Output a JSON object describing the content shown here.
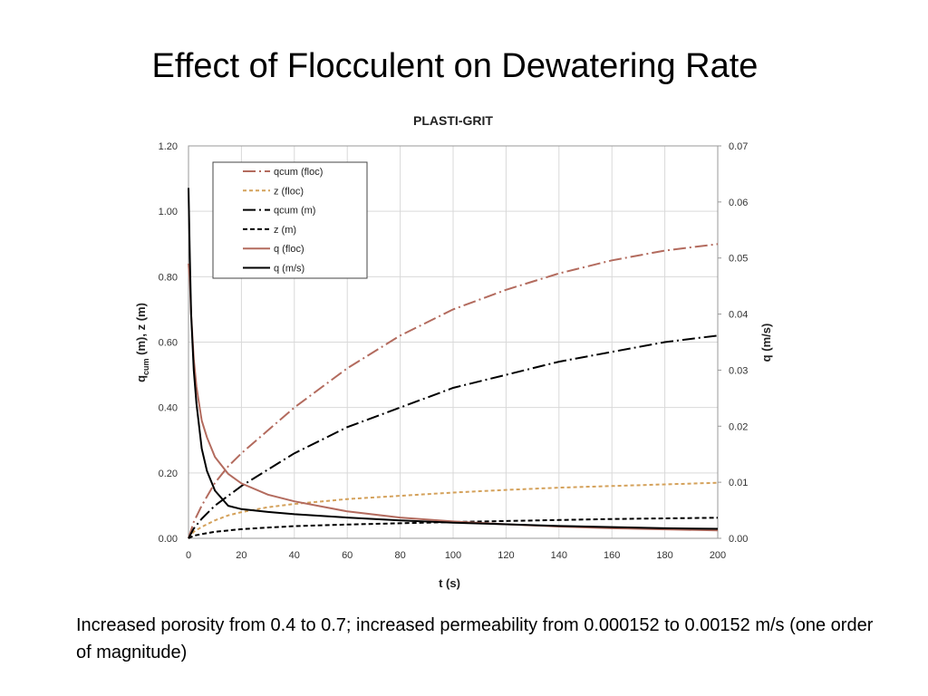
{
  "slide": {
    "title": "Effect of Flocculent on Dewatering Rate",
    "caption": "Increased porosity from 0.4 to 0.7; increased permeability from 0.000152 to 0.00152 m/s (one order of magnitude)"
  },
  "chart_data": {
    "type": "line",
    "title": "PLASTI-GRIT",
    "xlabel": "t (s)",
    "ylabel_left_main": "q",
    "ylabel_left_sub": "cum",
    "ylabel_left_rest": " (m), z (m)",
    "ylabel_right": "q (m/s)",
    "xlim": [
      0,
      200
    ],
    "ylim_left": [
      0,
      1.2
    ],
    "ylim_right": [
      0,
      0.07
    ],
    "x_ticks": [
      "0",
      "20",
      "40",
      "60",
      "80",
      "100",
      "120",
      "140",
      "160",
      "180",
      "200"
    ],
    "y_left_ticks": [
      "0.00",
      "0.20",
      "0.40",
      "0.60",
      "0.80",
      "1.00",
      "1.20"
    ],
    "y_right_ticks": [
      "0.00",
      "0.01",
      "0.02",
      "0.03",
      "0.04",
      "0.05",
      "0.06",
      "0.07"
    ],
    "grid": true,
    "legend_position": "top-left",
    "series": [
      {
        "name": "qcum (floc)",
        "axis": "left",
        "color": "#b36b5e",
        "dash": "14,4,2,4",
        "x": [
          0,
          2,
          5,
          10,
          15,
          20,
          30,
          40,
          50,
          60,
          80,
          100,
          120,
          140,
          160,
          180,
          200
        ],
        "y": [
          0,
          0.05,
          0.1,
          0.17,
          0.22,
          0.26,
          0.33,
          0.4,
          0.46,
          0.52,
          0.62,
          0.7,
          0.76,
          0.81,
          0.85,
          0.88,
          0.9
        ]
      },
      {
        "name": "z (floc)",
        "axis": "left",
        "color": "#d4a15a",
        "dash": "4,3",
        "x": [
          0,
          2,
          5,
          10,
          15,
          20,
          30,
          40,
          60,
          80,
          100,
          120,
          140,
          160,
          180,
          200
        ],
        "y": [
          0,
          0.02,
          0.035,
          0.055,
          0.07,
          0.08,
          0.095,
          0.105,
          0.12,
          0.13,
          0.14,
          0.148,
          0.155,
          0.16,
          0.165,
          0.17
        ]
      },
      {
        "name": "qcum (m)",
        "axis": "left",
        "color": "#000000",
        "dash": "14,4,2,4",
        "x": [
          0,
          2,
          5,
          10,
          15,
          20,
          30,
          40,
          50,
          60,
          80,
          100,
          120,
          140,
          160,
          180,
          200
        ],
        "y": [
          0,
          0.03,
          0.06,
          0.1,
          0.13,
          0.16,
          0.21,
          0.26,
          0.3,
          0.34,
          0.4,
          0.46,
          0.5,
          0.54,
          0.57,
          0.6,
          0.62
        ]
      },
      {
        "name": "z (m)",
        "axis": "left",
        "color": "#000000",
        "dash": "5,3",
        "x": [
          0,
          2,
          5,
          10,
          20,
          30,
          40,
          60,
          80,
          100,
          120,
          140,
          160,
          180,
          200
        ],
        "y": [
          0,
          0.008,
          0.013,
          0.02,
          0.028,
          0.033,
          0.037,
          0.042,
          0.046,
          0.05,
          0.053,
          0.056,
          0.059,
          0.061,
          0.063
        ]
      },
      {
        "name": "q (floc)",
        "axis": "right",
        "color": "#b36b5e",
        "dash": "",
        "x": [
          0,
          0.5,
          1,
          2,
          3,
          5,
          7,
          10,
          15,
          20,
          30,
          40,
          60,
          80,
          100,
          120,
          140,
          160,
          180,
          200
        ],
        "y": [
          0.049,
          0.046,
          0.04,
          0.032,
          0.027,
          0.021,
          0.018,
          0.0145,
          0.0115,
          0.0098,
          0.0078,
          0.0066,
          0.0048,
          0.0037,
          0.003,
          0.0025,
          0.0021,
          0.0018,
          0.0016,
          0.0014
        ]
      },
      {
        "name": "q (m/s)",
        "axis": "right",
        "color": "#000000",
        "dash": "",
        "x": [
          0,
          0.5,
          1,
          2,
          3,
          5,
          7,
          10,
          15,
          20,
          30,
          40,
          60,
          80,
          100,
          120,
          140,
          160,
          180,
          200
        ],
        "y": [
          0.0625,
          0.05,
          0.04,
          0.03,
          0.024,
          0.016,
          0.012,
          0.0085,
          0.0058,
          0.0052,
          0.0047,
          0.0043,
          0.0037,
          0.0032,
          0.0028,
          0.0025,
          0.0022,
          0.002,
          0.0018,
          0.0017
        ]
      }
    ]
  }
}
